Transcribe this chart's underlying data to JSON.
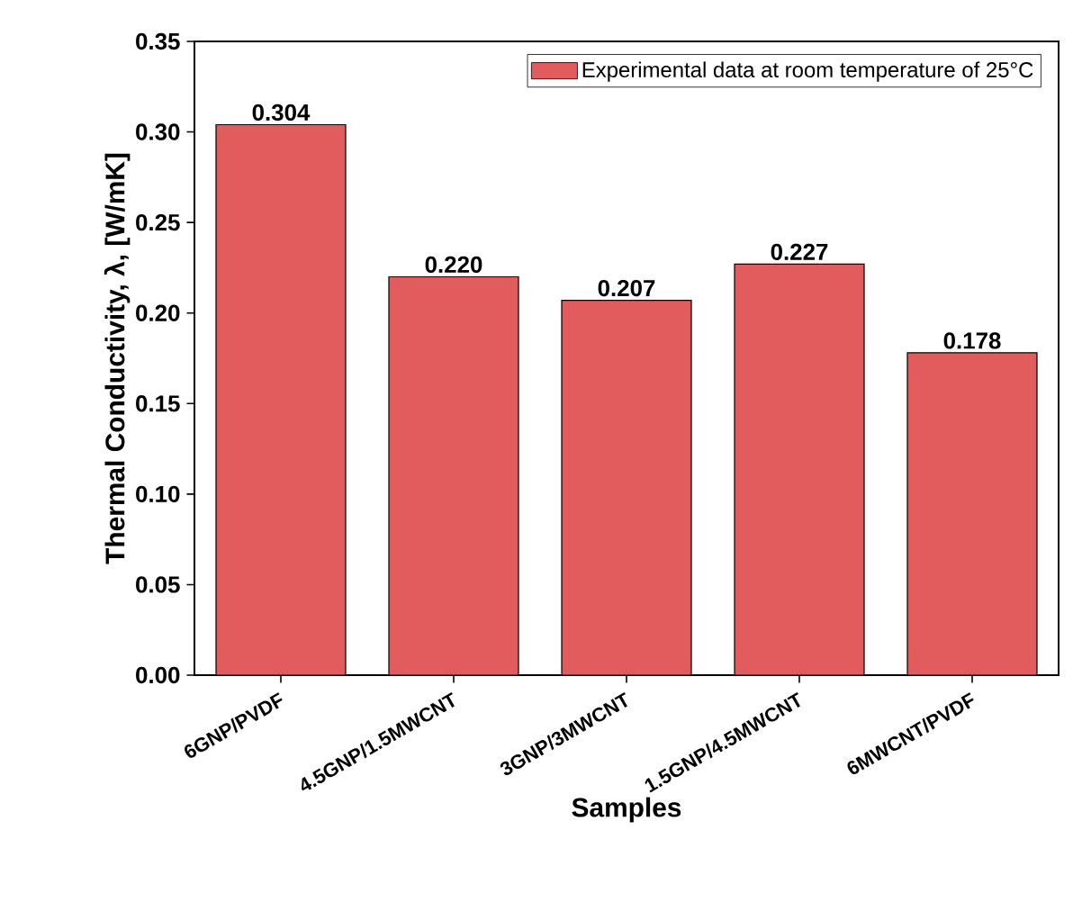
{
  "chart_data": {
    "type": "bar",
    "xlabel": "Samples",
    "ylabel": "Thermal Conductivity, λ, [W/mK]",
    "categories": [
      "6GNP/PVDF",
      "4.5GNP/1.5MWCNT",
      "3GNP/3MWCNT",
      "1.5GNP/4.5MWCNT",
      "6MWCNT/PVDF"
    ],
    "series": [
      {
        "name": "Experimental data at room temperature of 25°C",
        "color": "#e25c5e",
        "values": [
          0.304,
          0.22,
          0.207,
          0.227,
          0.178
        ],
        "value_labels": [
          "0.304",
          "0.220",
          "0.207",
          "0.227",
          "0.178"
        ]
      }
    ],
    "ylim": [
      0,
      0.35
    ],
    "yticks": [
      {
        "value": 0,
        "label": "0.00"
      },
      {
        "value": 0.05,
        "label": "0.05"
      },
      {
        "value": 0.1,
        "label": "0.10"
      },
      {
        "value": 0.15,
        "label": "0.15"
      },
      {
        "value": 0.2,
        "label": "0.20"
      },
      {
        "value": 0.25,
        "label": "0.25"
      },
      {
        "value": 0.3,
        "label": "0.30"
      },
      {
        "value": 0.35,
        "label": "0.35"
      }
    ],
    "legend": "top right",
    "grid": false
  }
}
